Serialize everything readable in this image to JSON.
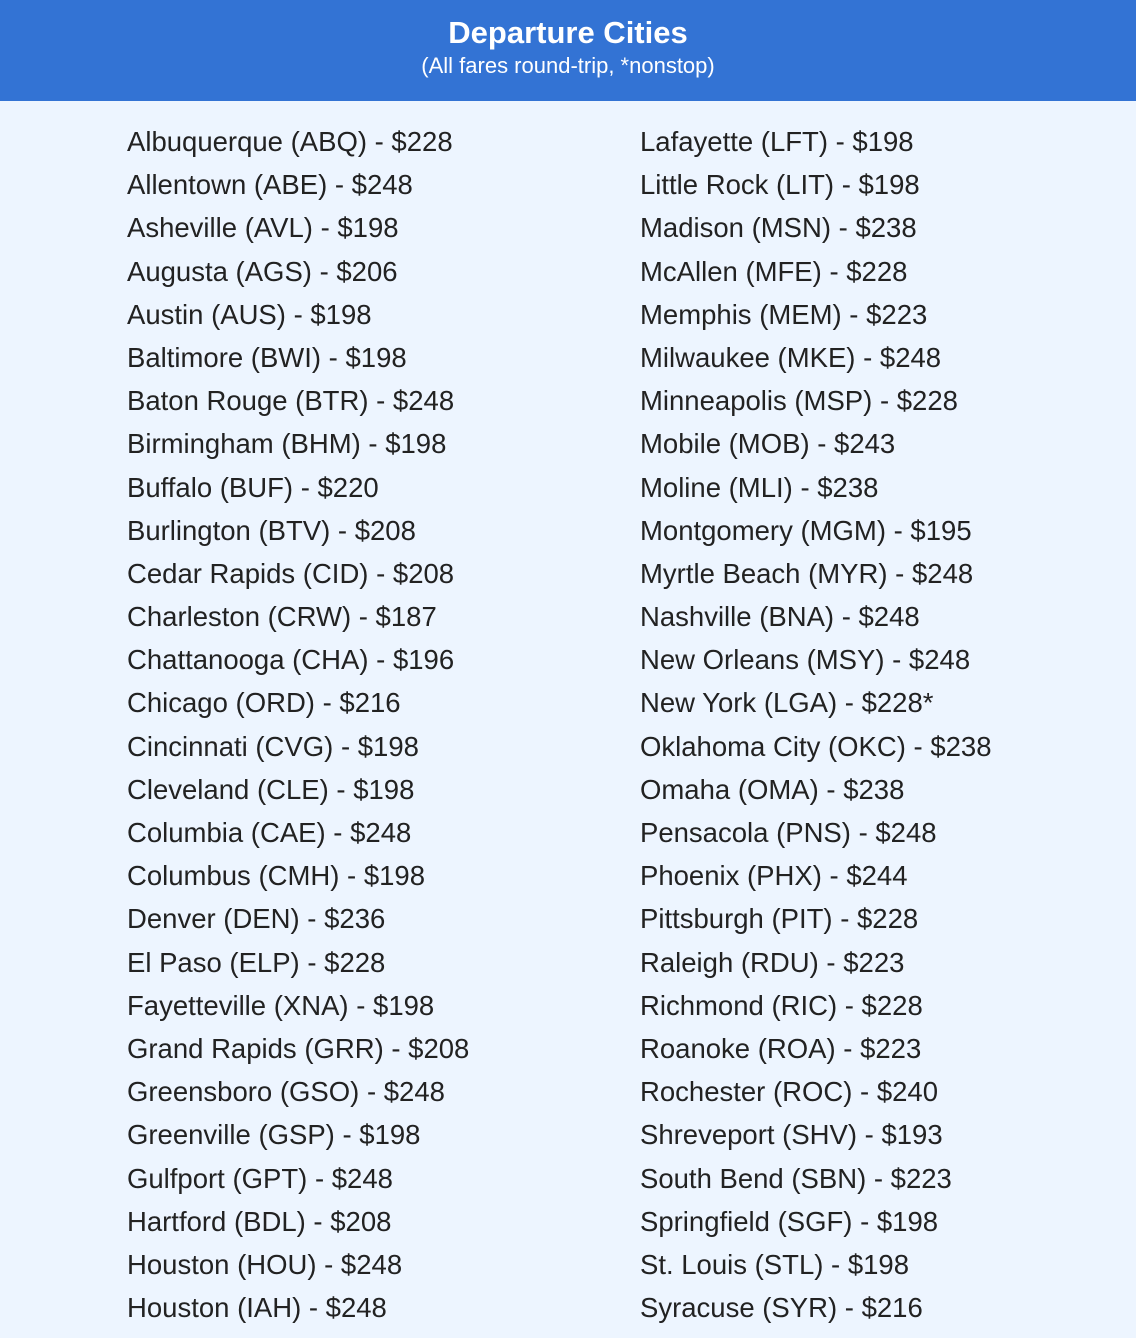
{
  "header": {
    "title": "Departure Cities",
    "subtitle": "(All fares round-trip, *nonstop)",
    "background_color": "#3373d4"
  },
  "columns": [
    [
      "Albuquerque (ABQ) - $228",
      "Allentown (ABE) - $248",
      "Asheville (AVL) - $198",
      "Augusta (AGS) - $206",
      "Austin (AUS) - $198",
      "Baltimore (BWI) - $198",
      "Baton Rouge (BTR) - $248",
      "Birmingham (BHM) - $198",
      "Buffalo (BUF) - $220",
      "Burlington (BTV) - $208",
      "Cedar Rapids (CID) - $208",
      "Charleston (CRW) - $187",
      "Chattanooga (CHA) - $196",
      "Chicago (ORD) - $216",
      "Cincinnati (CVG) - $198",
      "Cleveland (CLE) - $198",
      "Columbia (CAE) - $248",
      "Columbus (CMH) - $198",
      "Denver (DEN) - $236",
      "El Paso (ELP) - $228",
      "Fayetteville (XNA) - $198",
      "Grand Rapids (GRR) - $208",
      "Greensboro (GSO) - $248",
      "Greenville (GSP) - $198",
      "Gulfport (GPT) - $248",
      "Hartford (BDL) - $208",
      "Houston (HOU) - $248",
      "Houston (IAH) - $248"
    ],
    [
      "Lafayette (LFT) - $198",
      "Little Rock (LIT) - $198",
      "Madison (MSN) - $238",
      "McAllen (MFE) - $228",
      "Memphis (MEM) - $223",
      "Milwaukee (MKE) - $248",
      "Minneapolis (MSP) - $228",
      "Mobile (MOB) - $243",
      "Moline (MLI) - $238",
      "Montgomery (MGM) - $195",
      "Myrtle Beach (MYR) - $248",
      "Nashville (BNA) - $248",
      "New Orleans (MSY) - $248",
      "New York (LGA) - $228*",
      "Oklahoma City (OKC) - $238",
      "Omaha (OMA) - $238",
      "Pensacola (PNS) - $248",
      "Phoenix (PHX) - $244",
      "Pittsburgh (PIT) - $228",
      "Raleigh (RDU) - $223",
      "Richmond (RIC) - $228",
      "Roanoke (ROA) - $223",
      "Rochester (ROC) - $240",
      "Shreveport (SHV) - $193",
      "South Bend (SBN) - $223",
      "Springfield (SGF) - $198",
      "St. Louis (STL) - $198",
      "Syracuse (SYR) - $216"
    ]
  ]
}
